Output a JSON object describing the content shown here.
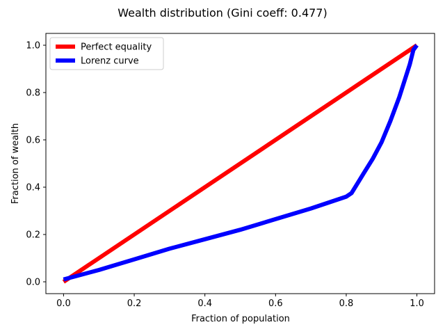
{
  "chart_data": {
    "type": "line",
    "title": "Wealth distribution (Gini coeff: 0.477)",
    "xlabel": "Fraction of population",
    "ylabel": "Fraction of wealth",
    "xlim": [
      -0.05,
      1.05
    ],
    "ylim": [
      -0.05,
      1.05
    ],
    "xticks": [
      "0.0",
      "0.2",
      "0.4",
      "0.6",
      "0.8",
      "1.0"
    ],
    "yticks": [
      "0.0",
      "0.2",
      "0.4",
      "0.6",
      "0.8",
      "1.0"
    ],
    "grid": false,
    "legend_position": "top-left",
    "series": [
      {
        "name": "Perfect equality",
        "color": "#ff0000",
        "x": [
          0.0,
          1.0
        ],
        "y": [
          0.0,
          1.0
        ]
      },
      {
        "name": "Lorenz curve",
        "color": "#0000ff",
        "x": [
          0.0,
          0.1,
          0.2,
          0.3,
          0.4,
          0.5,
          0.6,
          0.7,
          0.75,
          0.8,
          0.815,
          0.85,
          0.875,
          0.9,
          0.925,
          0.95,
          0.965,
          0.98,
          0.99,
          1.0
        ],
        "y": [
          0.01,
          0.05,
          0.095,
          0.14,
          0.18,
          0.22,
          0.265,
          0.31,
          0.335,
          0.36,
          0.375,
          0.46,
          0.52,
          0.59,
          0.68,
          0.78,
          0.85,
          0.92,
          0.98,
          1.0
        ]
      }
    ]
  }
}
